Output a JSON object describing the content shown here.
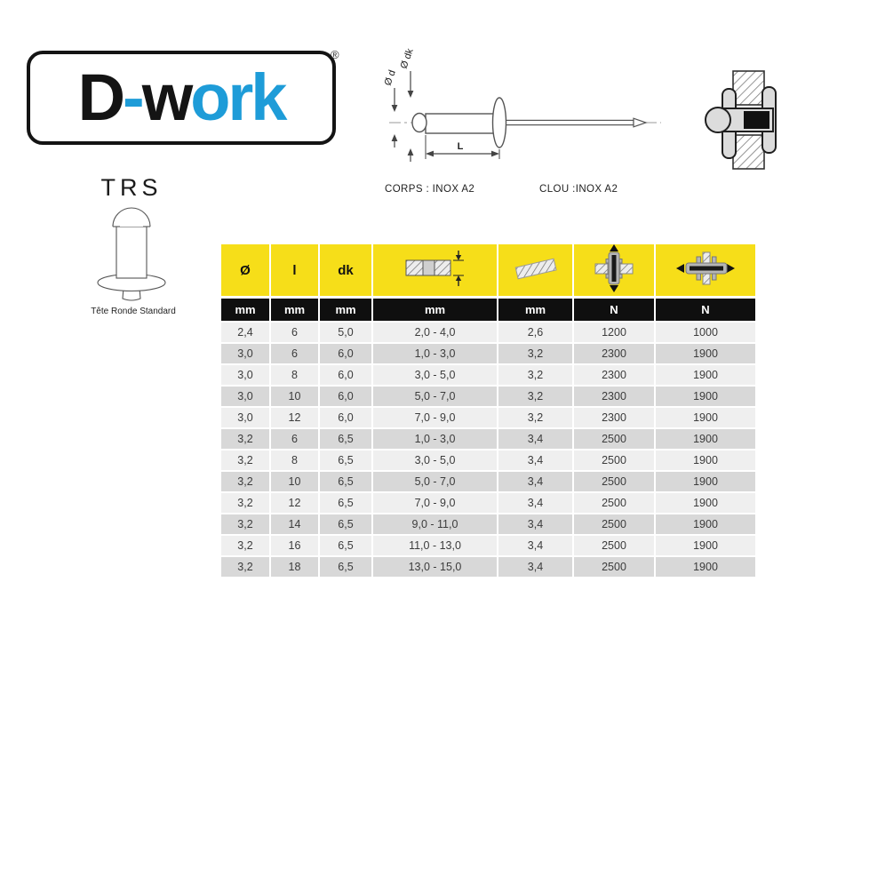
{
  "brand": {
    "part_black_1": "D",
    "part_blue_dash": "-",
    "part_black_2": "w",
    "part_blue_2": "ork",
    "registered": "®"
  },
  "product": {
    "code": "TRS",
    "head_type": "Tête Ronde Standard"
  },
  "diagram": {
    "label_d": "Ø d",
    "label_dk": "Ø dk",
    "label_l": "L",
    "body_material": "CORPS : INOX A2",
    "nail_material": "CLOU :INOX A2"
  },
  "table": {
    "columns": [
      {
        "label": "Ø",
        "icon": "",
        "unit": "mm"
      },
      {
        "label": "l",
        "icon": "",
        "unit": "mm"
      },
      {
        "label": "dk",
        "icon": "",
        "unit": "mm"
      },
      {
        "label": "",
        "icon": "grip-range-icon",
        "unit": "mm"
      },
      {
        "label": "",
        "icon": "drill-hole-icon",
        "unit": "mm"
      },
      {
        "label": "",
        "icon": "shear-strength-icon",
        "unit": "N"
      },
      {
        "label": "",
        "icon": "tensile-strength-icon",
        "unit": "N"
      }
    ],
    "rows": [
      [
        "2,4",
        "6",
        "5,0",
        "2,0 - 4,0",
        "2,6",
        "1200",
        "1000"
      ],
      [
        "3,0",
        "6",
        "6,0",
        "1,0 - 3,0",
        "3,2",
        "2300",
        "1900"
      ],
      [
        "3,0",
        "8",
        "6,0",
        "3,0 - 5,0",
        "3,2",
        "2300",
        "1900"
      ],
      [
        "3,0",
        "10",
        "6,0",
        "5,0 - 7,0",
        "3,2",
        "2300",
        "1900"
      ],
      [
        "3,0",
        "12",
        "6,0",
        "7,0 - 9,0",
        "3,2",
        "2300",
        "1900"
      ],
      [
        "3,2",
        "6",
        "6,5",
        "1,0 - 3,0",
        "3,4",
        "2500",
        "1900"
      ],
      [
        "3,2",
        "8",
        "6,5",
        "3,0 - 5,0",
        "3,4",
        "2500",
        "1900"
      ],
      [
        "3,2",
        "10",
        "6,5",
        "5,0 - 7,0",
        "3,4",
        "2500",
        "1900"
      ],
      [
        "3,2",
        "12",
        "6,5",
        "7,0 - 9,0",
        "3,4",
        "2500",
        "1900"
      ],
      [
        "3,2",
        "14",
        "6,5",
        "9,0 - 11,0",
        "3,4",
        "2500",
        "1900"
      ],
      [
        "3,2",
        "16",
        "6,5",
        "11,0 - 13,0",
        "3,4",
        "2500",
        "1900"
      ],
      [
        "3,2",
        "18",
        "6,5",
        "13,0 - 15,0",
        "3,4",
        "2500",
        "1900"
      ]
    ]
  },
  "colors": {
    "brand_blue": "#1E9CD8",
    "header_yellow": "#F6DE19",
    "header_black": "#0F0F0F",
    "row_light": "#EFEFEF",
    "row_dark": "#D8D8D8"
  }
}
